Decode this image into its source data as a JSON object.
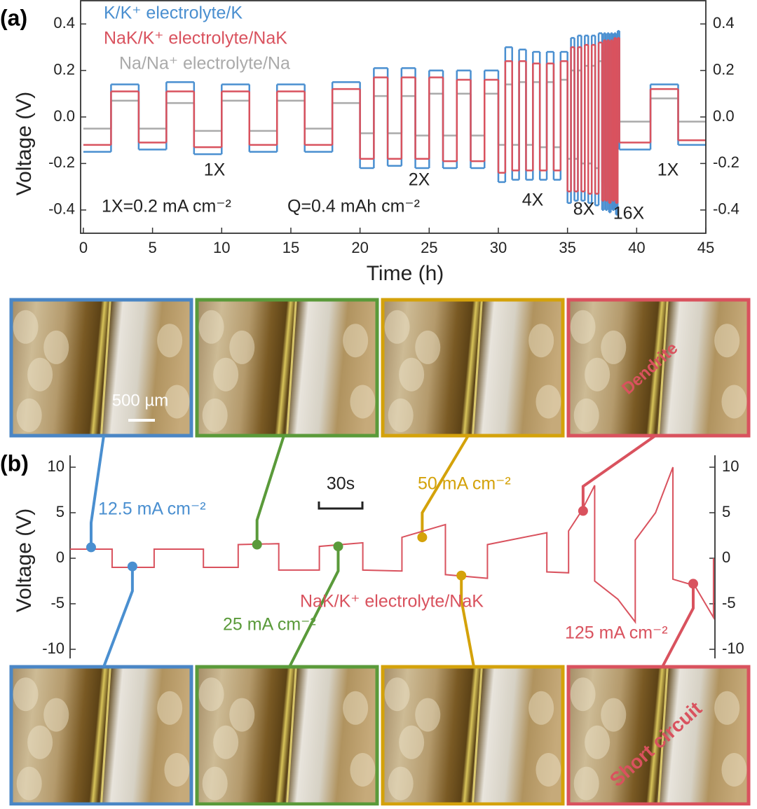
{
  "chart_data": [
    {
      "type": "step",
      "panel_label": "(a)",
      "x_label": "Time (h)",
      "y_label": "Voltage (V)",
      "xlim": [
        -0.2,
        45
      ],
      "ylim": [
        -0.5,
        0.5
      ],
      "xticks": [
        0,
        5,
        10,
        15,
        20,
        25,
        30,
        35,
        40,
        45
      ],
      "yticks": [
        -0.4,
        -0.2,
        {
          "value": 0,
          "label": "0.0"
        },
        0.2,
        0.4
      ],
      "right_axis_labels": true,
      "x": [
        0,
        2,
        4,
        6,
        8,
        10,
        12,
        14,
        16,
        18,
        20,
        21,
        22,
        23,
        24,
        25,
        26,
        27,
        28,
        29,
        30,
        30.5,
        31,
        31.5,
        32,
        32.5,
        33,
        33.5,
        34,
        34.5,
        35,
        35.25,
        35.5,
        35.75,
        36,
        36.25,
        36.5,
        36.75,
        37,
        37.25,
        37.5,
        37.625,
        37.75,
        37.875,
        38,
        38.125,
        38.25,
        38.375,
        38.5,
        38.625,
        38.75,
        41,
        43
      ],
      "series": [
        {
          "name": "K/K⁺ electrolyte/K",
          "color": "#4a8fd0",
          "values": [
            -0.15,
            0.14,
            -0.14,
            0.15,
            -0.16,
            0.14,
            -0.15,
            0.14,
            -0.15,
            0.15,
            -0.22,
            0.21,
            -0.21,
            0.21,
            -0.22,
            0.2,
            -0.22,
            0.2,
            -0.22,
            0.2,
            -0.28,
            0.3,
            -0.27,
            0.29,
            -0.27,
            0.28,
            -0.27,
            0.28,
            -0.27,
            0.28,
            -0.37,
            0.34,
            -0.36,
            0.35,
            -0.36,
            0.35,
            -0.37,
            0.35,
            -0.38,
            0.36,
            -0.4,
            0.36,
            -0.4,
            0.36,
            -0.41,
            0.36,
            -0.4,
            0.36,
            -0.42,
            0.37,
            -0.14,
            0.14,
            -0.12
          ]
        },
        {
          "name": "NaK/K⁺ electrolyte/NaK",
          "color": "#d9525e",
          "values": [
            -0.12,
            0.11,
            -0.11,
            0.11,
            -0.13,
            0.11,
            -0.12,
            0.11,
            -0.12,
            0.12,
            -0.18,
            0.17,
            -0.18,
            0.17,
            -0.18,
            0.17,
            -0.19,
            0.16,
            -0.19,
            0.16,
            -0.24,
            0.24,
            -0.23,
            0.24,
            -0.23,
            0.23,
            -0.23,
            0.23,
            -0.23,
            0.24,
            -0.32,
            0.3,
            -0.32,
            0.3,
            -0.32,
            0.31,
            -0.33,
            0.31,
            -0.33,
            0.32,
            -0.36,
            0.33,
            -0.36,
            0.33,
            -0.37,
            0.33,
            -0.36,
            0.34,
            -0.37,
            0.34,
            -0.11,
            0.12,
            -0.1
          ]
        },
        {
          "name": "Na/Na⁺ electrolyte/Na",
          "color": "#aaaaaa",
          "values": [
            -0.05,
            0.07,
            -0.05,
            0.06,
            -0.06,
            0.07,
            -0.06,
            0.07,
            -0.05,
            0.06,
            -0.07,
            0.09,
            -0.07,
            0.09,
            -0.08,
            0.1,
            -0.08,
            0.1,
            -0.08,
            0.1,
            -0.12,
            0.14,
            -0.12,
            0.15,
            -0.12,
            0.15,
            -0.13,
            0.15,
            -0.13,
            0.16,
            -0.18,
            0.2,
            -0.18,
            0.2,
            -0.2,
            0.22,
            -0.2,
            0.22,
            -0.22,
            0.24,
            -0.28,
            0.28,
            -0.3,
            0.3,
            -0.3,
            0.3,
            -0.32,
            0.3,
            -0.3,
            0.3,
            -0.02,
            0.08,
            -0.02
          ]
        }
      ],
      "annotations": [
        "1X",
        "2X",
        "4X",
        "8X",
        "16X",
        "1X",
        "1X=0.2 mA cm⁻²",
        "Q=0.4 mAh cm⁻²"
      ]
    },
    {
      "type": "line",
      "panel_label": "(b)",
      "y_label": "Voltage (V)",
      "xlim": [
        0,
        445
      ],
      "ylim": [
        -11,
        11
      ],
      "yticks": [
        -10,
        -5,
        0,
        5,
        10
      ],
      "right_axis_labels": true,
      "series": [
        {
          "name": "NaK/K⁺ electrolyte/NaK",
          "color": "#d9525e",
          "x": [
            0,
            29,
            29,
            58,
            58,
            92,
            92,
            116,
            116,
            144,
            144,
            172,
            172,
            202,
            202,
            229,
            229,
            259,
            259,
            288,
            288,
            329,
            329,
            344,
            344,
            353,
            362,
            362,
            378,
            390,
            390,
            404,
            416,
            416,
            431,
            444,
            444
          ],
          "values": [
            1.0,
            1.0,
            -1.0,
            -1.0,
            1.0,
            1.0,
            -1.0,
            -1.0,
            1.5,
            1.6,
            -1.3,
            -1.3,
            1.3,
            1.7,
            -1.3,
            -1.4,
            2.3,
            3.7,
            -1.8,
            -2.2,
            1.5,
            2.8,
            -1.5,
            -1.6,
            3,
            5.2,
            8.0,
            -2.5,
            -4.5,
            -7,
            2,
            5,
            10,
            -2.3,
            -3,
            -6.5,
            0
          ]
        }
      ],
      "markers": [
        {
          "x": 14.5,
          "y": 1.2,
          "color": "#4a8fd0"
        },
        {
          "x": 43,
          "y": -0.9,
          "color": "#4a8fd0"
        },
        {
          "x": 129,
          "y": 1.5,
          "color": "#5a9a3a"
        },
        {
          "x": 185,
          "y": 1.3,
          "color": "#5a9a3a"
        },
        {
          "x": 243,
          "y": 2.3,
          "color": "#d4a20a"
        },
        {
          "x": 270,
          "y": -1.9,
          "color": "#d4a20a"
        },
        {
          "x": 354,
          "y": 5.2,
          "color": "#d9525e"
        },
        {
          "x": 430,
          "y": -2.8,
          "color": "#d9525e"
        }
      ],
      "scale_bar": {
        "value": 30,
        "label": "30s"
      },
      "annotations": [
        "12.5 mA cm⁻²",
        "25 mA cm⁻²",
        "50 mA cm⁻²",
        "125 mA cm⁻²"
      ]
    }
  ],
  "photo_texts": {
    "scale_bar": "500 µm",
    "dendrite": "Dendrite",
    "short_circuit": "Short circuit"
  }
}
